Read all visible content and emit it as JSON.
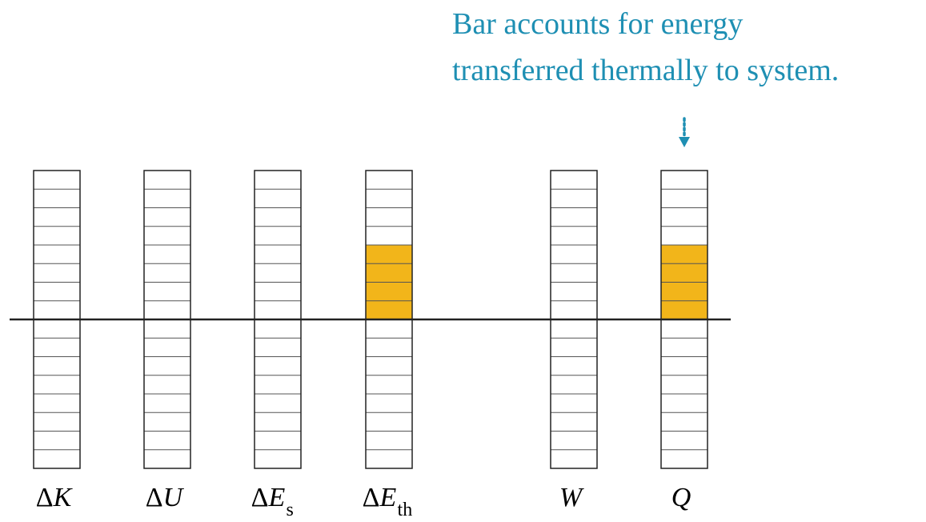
{
  "chart_data": {
    "type": "bar",
    "annotation": [
      "Bar accounts for energy",
      "transferred thermally to system."
    ],
    "categories": [
      "ΔK",
      "ΔU",
      "ΔE",
      "ΔE",
      "W",
      "Q"
    ],
    "category_subscripts": [
      null,
      null,
      "s",
      "th",
      null,
      null
    ],
    "values": [
      0,
      0,
      0,
      4,
      0,
      4
    ],
    "color": "#f2b51a",
    "annotation_color": "#1e8fb3",
    "ylim": [
      -8,
      8
    ]
  }
}
